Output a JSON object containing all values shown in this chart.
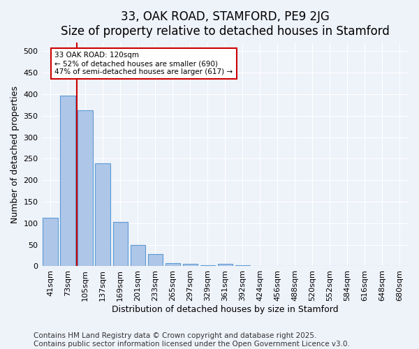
{
  "title": "33, OAK ROAD, STAMFORD, PE9 2JG",
  "subtitle": "Size of property relative to detached houses in Stamford",
  "xlabel": "Distribution of detached houses by size in Stamford",
  "ylabel": "Number of detached properties",
  "categories": [
    "41sqm",
    "73sqm",
    "105sqm",
    "137sqm",
    "169sqm",
    "201sqm",
    "233sqm",
    "265sqm",
    "297sqm",
    "329sqm",
    "361sqm",
    "392sqm",
    "424sqm",
    "456sqm",
    "488sqm",
    "520sqm",
    "552sqm",
    "584sqm",
    "616sqm",
    "648sqm",
    "680sqm"
  ],
  "values": [
    112,
    397,
    362,
    240,
    103,
    50,
    29,
    8,
    5,
    3,
    6,
    2,
    1,
    0,
    0,
    0,
    1,
    0,
    0,
    0,
    1
  ],
  "bar_color": "#aec6e8",
  "bar_edge_color": "#5b9bd5",
  "vline_x": 1.5,
  "vline_color": "#cc0000",
  "annotation_text": "33 OAK ROAD: 120sqm\n← 52% of detached houses are smaller (690)\n47% of semi-detached houses are larger (617) →",
  "annotation_box_color": "#ffffff",
  "annotation_box_edge": "#cc0000",
  "ylim": [
    0,
    520
  ],
  "yticks": [
    0,
    50,
    100,
    150,
    200,
    250,
    300,
    350,
    400,
    450,
    500
  ],
  "footer_line1": "Contains HM Land Registry data © Crown copyright and database right 2025.",
  "footer_line2": "Contains public sector information licensed under the Open Government Licence v3.0.",
  "bg_color": "#eef2f9",
  "plot_bg_color": "#eef2f9",
  "title_fontsize": 12,
  "axis_label_fontsize": 9,
  "tick_fontsize": 8,
  "footer_fontsize": 7.5
}
